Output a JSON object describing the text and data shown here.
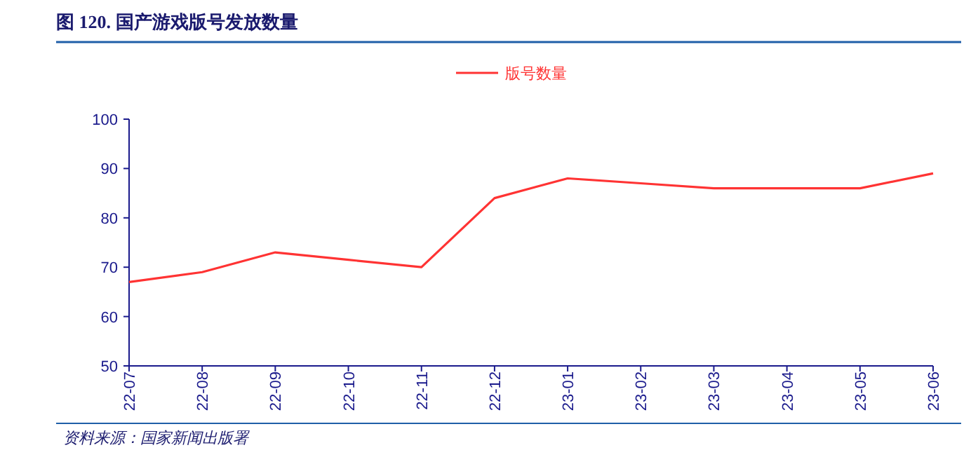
{
  "chart_data": {
    "type": "line",
    "title": "图 120. 国产游戏版号发放数量",
    "categories": [
      "22-07",
      "22-08",
      "22-09",
      "22-10",
      "22-11",
      "22-12",
      "23-01",
      "23-02",
      "23-03",
      "23-04",
      "23-05",
      "23-06"
    ],
    "series": [
      {
        "name": "版号数量",
        "color": "#ff3333",
        "values": [
          67,
          69,
          73,
          71.5,
          70,
          84,
          88,
          87,
          86,
          86,
          86,
          89
        ]
      }
    ],
    "ylim": [
      50,
      100
    ],
    "yticks": [
      50,
      60,
      70,
      80,
      90,
      100
    ],
    "grid": false,
    "legend": "top",
    "marker": "none",
    "line_style": "solid",
    "annotations": [
      "资料来源：国家新闻出版署"
    ]
  }
}
